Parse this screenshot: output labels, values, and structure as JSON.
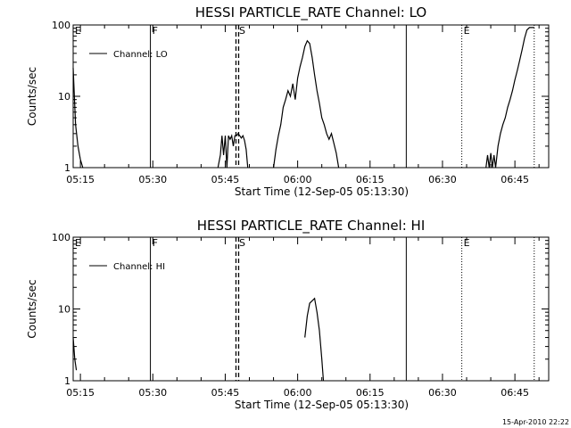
{
  "footer_timestamp": "15-Apr-2010 22:22",
  "chart_data": [
    {
      "type": "line",
      "title": "HESSI PARTICLE_RATE Channel: LO",
      "xlabel": "Start Time (12-Sep-05 05:13:30)",
      "ylabel": "Counts/sec",
      "yscale": "log",
      "ylim": [
        1,
        100
      ],
      "xlim": [
        "05:13:30",
        "06:52:00"
      ],
      "grid": false,
      "legend_position": "top-left",
      "x_ticks": [
        "05:15",
        "05:30",
        "05:45",
        "06:00",
        "06:15",
        "06:30",
        "06:45"
      ],
      "y_ticks": [
        "1",
        "10",
        "100"
      ],
      "markers": [
        {
          "label": "E",
          "time": "05:13:30",
          "style": "solid"
        },
        {
          "label": "F",
          "time": "05:29:30",
          "style": "solid"
        },
        {
          "label": "S",
          "time": "05:47:30",
          "style": "dashed"
        },
        {
          "label": "",
          "time": "06:22:30",
          "style": "solid"
        },
        {
          "label": "E",
          "time": "06:34:00",
          "style": "dotted"
        },
        {
          "label": "",
          "time": "06:49:00",
          "style": "dotted"
        }
      ],
      "series": [
        {
          "name": "Channel: LO",
          "segments": [
            {
              "x": [
                "05:13:30",
                "05:14:00",
                "05:14:30",
                "05:15:00",
                "05:15:30"
              ],
              "y": [
                25,
                4,
                2,
                1.3,
                1
              ]
            },
            {
              "x": [
                "05:43:30",
                "05:44:00",
                "05:44:20",
                "05:44:40",
                "05:45:00",
                "05:45:20",
                "05:45:40",
                "05:46:00",
                "05:46:20",
                "05:46:40",
                "05:47:00",
                "05:47:20",
                "05:47:40",
                "05:48:00",
                "05:48:20",
                "05:48:40",
                "05:49:00",
                "05:49:20",
                "05:49:40"
              ],
              "y": [
                1,
                1.5,
                2.8,
                1.5,
                2.8,
                1,
                2.8,
                2.5,
                2.8,
                2,
                2.8,
                2.8,
                3,
                2.8,
                2.6,
                2.8,
                2.4,
                1.8,
                1
              ]
            },
            {
              "x": [
                "05:55:00",
                "05:55:30",
                "05:56:00",
                "05:56:30",
                "05:57:00",
                "05:57:30",
                "05:58:00",
                "05:58:30",
                "05:59:00",
                "05:59:30",
                "06:00:00",
                "06:00:30",
                "06:01:00",
                "06:01:30",
                "06:02:00",
                "06:02:30",
                "06:03:00",
                "06:03:30",
                "06:04:00",
                "06:04:30",
                "06:05:00",
                "06:05:30",
                "06:06:00",
                "06:06:30",
                "06:07:00",
                "06:07:30",
                "06:08:00",
                "06:08:30"
              ],
              "y": [
                1,
                1.8,
                2.8,
                4,
                7,
                9,
                12,
                10,
                15,
                9,
                18,
                26,
                35,
                50,
                60,
                55,
                35,
                20,
                12,
                8,
                5,
                4,
                3,
                2.5,
                3,
                2.2,
                1.6,
                1
              ]
            },
            {
              "x": [
                "06:39:00",
                "06:39:20",
                "06:39:40",
                "06:40:00",
                "06:40:20",
                "06:40:40",
                "06:41:00",
                "06:41:30",
                "06:42:00",
                "06:42:30",
                "06:43:00",
                "06:43:30",
                "06:44:00",
                "06:44:30",
                "06:45:00",
                "06:45:30",
                "06:46:00",
                "06:46:30",
                "06:47:00",
                "06:47:30",
                "06:48:00",
                "06:48:30",
                "06:49:00"
              ],
              "y": [
                1,
                1.5,
                1,
                1.6,
                1,
                1.5,
                1,
                2,
                3,
                4,
                5,
                7,
                9,
                12,
                17,
                23,
                32,
                45,
                65,
                85,
                92,
                92,
                92
              ]
            }
          ]
        }
      ]
    },
    {
      "type": "line",
      "title": "HESSI PARTICLE_RATE Channel: HI",
      "xlabel": "Start Time (12-Sep-05 05:13:30)",
      "ylabel": "Counts/sec",
      "yscale": "log",
      "ylim": [
        1,
        100
      ],
      "xlim": [
        "05:13:30",
        "06:52:00"
      ],
      "grid": false,
      "legend_position": "top-left",
      "x_ticks": [
        "05:15",
        "05:30",
        "05:45",
        "06:00",
        "06:15",
        "06:30",
        "06:45"
      ],
      "y_ticks": [
        "1",
        "10",
        "100"
      ],
      "markers": [
        {
          "label": "E",
          "time": "05:13:30",
          "style": "solid"
        },
        {
          "label": "F",
          "time": "05:29:30",
          "style": "solid"
        },
        {
          "label": "S",
          "time": "05:47:30",
          "style": "dashed"
        },
        {
          "label": "",
          "time": "06:22:30",
          "style": "solid"
        },
        {
          "label": "E",
          "time": "06:34:00",
          "style": "dotted"
        },
        {
          "label": "",
          "time": "06:49:00",
          "style": "dotted"
        }
      ],
      "series": [
        {
          "name": "Channel: HI",
          "segments": [
            {
              "x": [
                "05:13:30",
                "05:13:50",
                "05:14:10"
              ],
              "y": [
                4,
                2,
                1.4
              ]
            },
            {
              "x": [
                "06:01:30",
                "06:02:00",
                "06:02:30",
                "06:03:00",
                "06:03:30",
                "06:04:00",
                "06:04:30",
                "06:05:00",
                "06:05:20"
              ],
              "y": [
                4,
                8,
                12,
                13,
                14,
                9,
                5,
                2,
                1
              ]
            }
          ]
        }
      ]
    }
  ]
}
